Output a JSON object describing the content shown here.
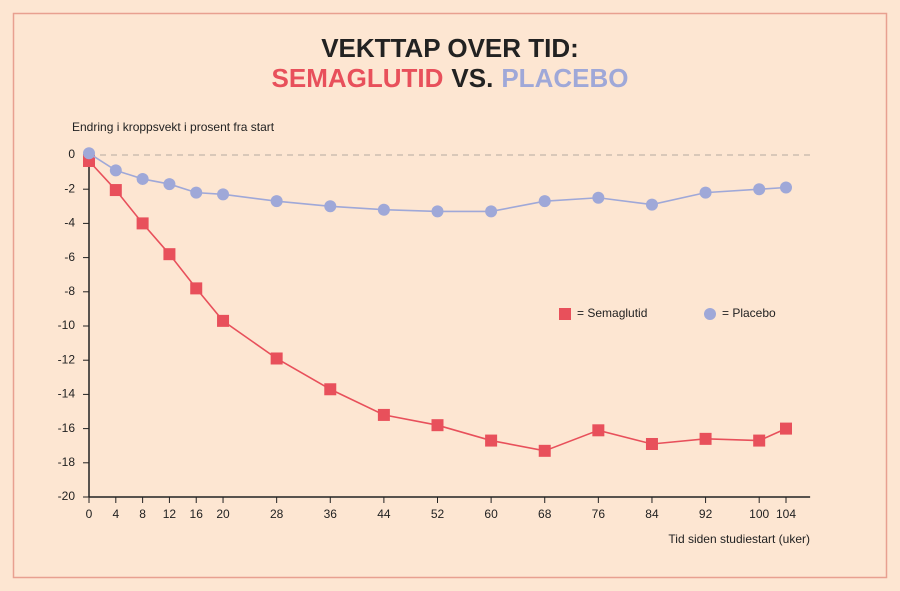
{
  "chart_data": {
    "type": "line",
    "title": "VEKTTAP OVER TID:",
    "title_line2": [
      {
        "text": "SEMAGLUTID",
        "color": "#e8505b"
      },
      {
        "text": "VS.",
        "color": "#222222"
      },
      {
        "text": "PLACEBO",
        "color": "#9fa8d8"
      }
    ],
    "y_label": "Endring i kroppsvekt i prosent fra start",
    "x_label": "Tid siden studiestart (uker)",
    "x": [
      0,
      4,
      8,
      12,
      16,
      20,
      28,
      36,
      44,
      52,
      60,
      68,
      76,
      84,
      92,
      100,
      104
    ],
    "series": [
      {
        "name": "= Semaglutid",
        "color": "#e8505b",
        "marker": "square",
        "values": [
          -0.35,
          -2.05,
          -4.0,
          -5.8,
          -7.8,
          -9.7,
          -11.9,
          -13.7,
          -15.2,
          -15.8,
          -16.7,
          -17.3,
          -16.1,
          -16.9,
          -16.6,
          -16.7,
          -16.0
        ]
      },
      {
        "name": "= Placebo",
        "color": "#9fa8d8",
        "marker": "circle",
        "values": [
          0.1,
          -0.9,
          -1.4,
          -1.7,
          -2.2,
          -2.3,
          -2.7,
          -3.0,
          -3.2,
          -3.3,
          -3.3,
          -2.7,
          -2.5,
          -2.9,
          -2.2,
          -2.0,
          -1.9
        ]
      }
    ],
    "xlim": [
      0,
      107.6
    ],
    "xticks": [
      0,
      4,
      8,
      12,
      16,
      20,
      28,
      36,
      44,
      52,
      60,
      68,
      76,
      84,
      92,
      100,
      104
    ],
    "ylim": [
      -20,
      0
    ],
    "yticks": [
      -20,
      -18,
      -16,
      -14,
      -12,
      -10,
      -8,
      -6,
      -4,
      -2,
      0
    ]
  }
}
